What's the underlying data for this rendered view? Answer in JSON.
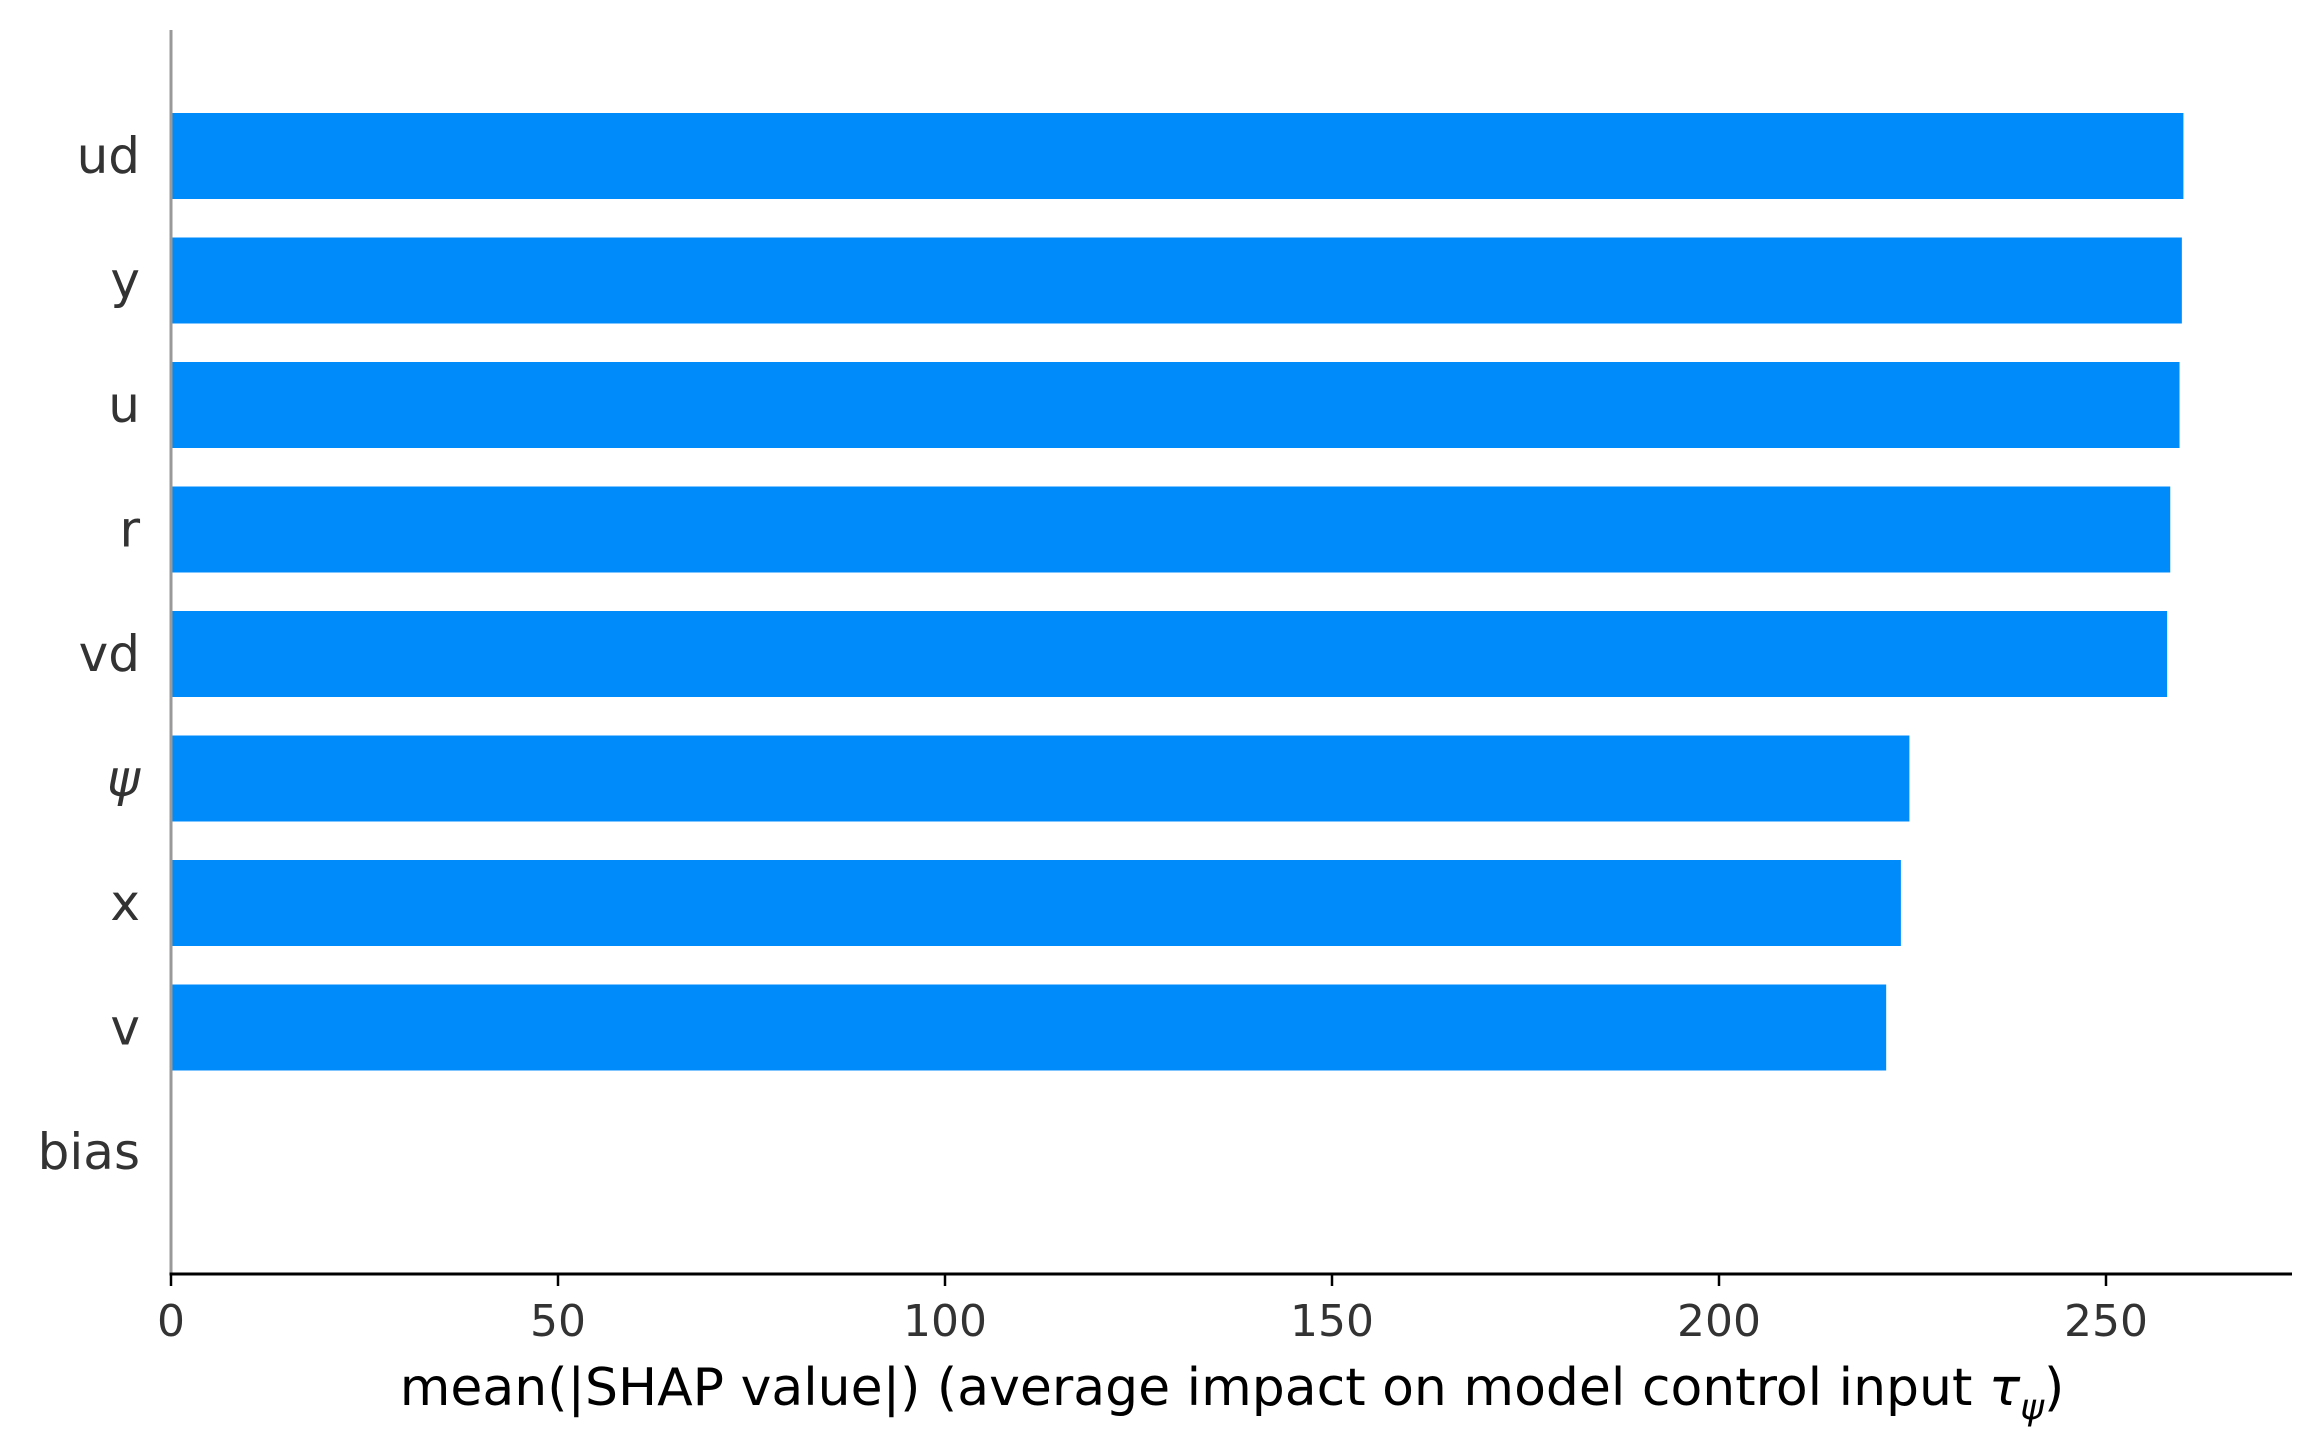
{
  "chart_data": {
    "type": "bar",
    "orientation": "horizontal",
    "categories": [
      "ud",
      "y",
      "u",
      "r",
      "vd",
      "ψ",
      "x",
      "v",
      "bias"
    ],
    "values": [
      260.0,
      259.8,
      259.5,
      258.3,
      257.9,
      224.6,
      223.5,
      221.6,
      0
    ],
    "xlabel": "mean(|SHAP value|) (average impact on model control input τψ)",
    "xlabel_main": "mean(|SHAP value|) (average impact on model control input ",
    "xlabel_symbol": "τ",
    "xlabel_subscript": "ψ",
    "xlabel_close": ")",
    "xticks": [
      0,
      50,
      100,
      150,
      200,
      250
    ],
    "xlim": [
      0,
      273
    ],
    "bar_color": "#008bfb",
    "axis_color": "#000000",
    "spine_color": "#999999",
    "grid": false,
    "legend": "none"
  }
}
